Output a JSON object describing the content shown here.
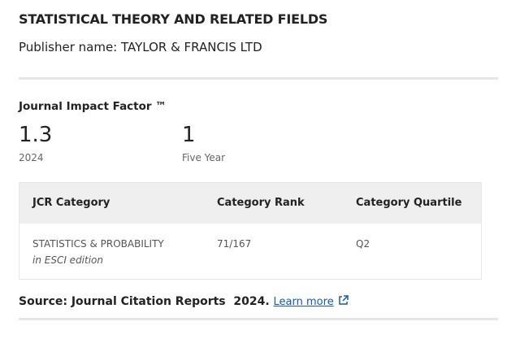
{
  "header": {
    "title": "STATISTICAL THEORY AND RELATED FIELDS",
    "publisher": "Publisher name: TAYLOR & FRANCIS LTD"
  },
  "impact": {
    "heading": "Journal Impact Factor ™",
    "metrics": [
      {
        "value": "1.3",
        "label": "2024"
      },
      {
        "value": "1",
        "label": "Five Year"
      }
    ]
  },
  "table": {
    "columns": [
      "JCR Category",
      "Category Rank",
      "Category Quartile"
    ],
    "rows": [
      {
        "category": "STATISTICS & PROBABILITY",
        "edition": "in ESCI edition",
        "rank": "71/167",
        "quartile": "Q2"
      }
    ]
  },
  "source": {
    "text": "Source: Journal Citation Reports  2024.",
    "link": "Learn more"
  }
}
